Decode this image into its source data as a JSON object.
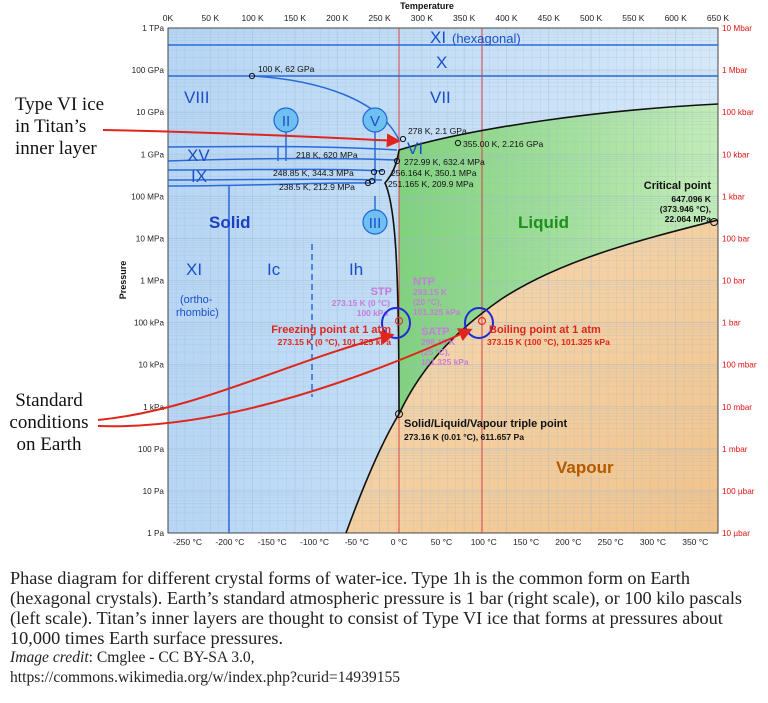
{
  "diagram": {
    "top_axis_title": "Temperature",
    "left_axis_title": "Pressure",
    "kelvin_ticks": [
      "0K",
      "50 K",
      "100 K",
      "150 K",
      "200 K",
      "250 K",
      "300 K",
      "350 K",
      "400 K",
      "450 K",
      "500 K",
      "550 K",
      "600 K",
      "650 K"
    ],
    "celsius_ticks": [
      "-250 °C",
      "-200 °C",
      "-150 °C",
      "-100 °C",
      "-50 °C",
      "0 °C",
      "50 °C",
      "100 °C",
      "150 °C",
      "200 °C",
      "250 °C",
      "300 °C",
      "350 °C"
    ],
    "pa_ticks": [
      "1 TPa",
      "100 GPa",
      "10 GPa",
      "1 GPa",
      "100 MPa",
      "10 MPa",
      "1 MPa",
      "100 kPa",
      "10 kPa",
      "1 kPa",
      "100 Pa",
      "10 Pa",
      "1 Pa"
    ],
    "bar_ticks": [
      "10 Mbar",
      "1 Mbar",
      "100 kbar",
      "10 kbar",
      "1 kbar",
      "100 bar",
      "10 bar",
      "1 bar",
      "100 mbar",
      "10 mbar",
      "1 mbar",
      "100 µbar",
      "10 µbar"
    ],
    "regions": {
      "solid": "Solid",
      "liquid": "Liquid",
      "vapour": "Vapour"
    },
    "phases": {
      "xi_hex": "XI",
      "xi_hex_note": "(hexagonal)",
      "x": "X",
      "viii": "VIII",
      "vii": "VII",
      "ii": "II",
      "v": "V",
      "vi": "VI",
      "xv": "XV",
      "ix": "IX",
      "iii": "III",
      "xi_orth": "XI",
      "xi_orth_note1": "(ortho-",
      "xi_orth_note2": "rhombic)",
      "ic": "Ic",
      "ih": "Ih"
    },
    "points": {
      "p100k": "100 K, 62 GPa",
      "p278k": "278 K, 2.1 GPa",
      "p355k": "355.00 K, 2.216 GPa",
      "p218k": "218 K, 620 MPa",
      "p272k": "272.99 K, 632.4 MPa",
      "p256k": "256.164 K, 350.1 MPa",
      "p248k": "248.85 K, 344.3 MPa",
      "p251k": "251.165 K, 209.9 MPa",
      "p238k": "238.5 K, 212.9 MPa"
    },
    "critical": {
      "title": "Critical point",
      "line1": "647.096 K",
      "line2": "(373.946 °C),",
      "line3": "22.064 MPa"
    },
    "stp": {
      "title": "STP",
      "line1": "273.15 K (0 °C)",
      "line2": "100 kPa"
    },
    "ntp": {
      "title": "NTP",
      "line1": "293.15 K",
      "line2": "(20 °C),",
      "line3": "101.325 kPa"
    },
    "satp": {
      "title": "SATP",
      "line1": "298.15 K",
      "line2": "(25 °C),",
      "line3": "101.325 kPa"
    },
    "freezing": {
      "title": "Freezing point at 1 atm",
      "line1": "273.15 K (0 °C), 101.325 kPa"
    },
    "boiling": {
      "title": "Boiling point at 1 atm",
      "line1": "373.15 K (100 °C), 101.325 kPa"
    },
    "triple": {
      "title": "Solid/Liquid/Vapour triple point",
      "line1": "273.16 K (0.01 °C), 611.657 Pa"
    }
  },
  "annotations": {
    "titan_1": "Type VI ice",
    "titan_2": "in Titan’s",
    "titan_3": "inner layer",
    "std_1": "Standard",
    "std_2": "conditions",
    "std_3": "on Earth"
  },
  "caption": {
    "text": "Phase diagram for different crystal forms of water-ice. Type 1h is the common form on Earth (hexagonal crystals). Earth’s standard atmospheric pressure is 1 bar (right scale), or 100 kilo pascals (left scale). Titan’s inner layers are thought to consist of Type VI ice that forms at pressures about 10,000 times Earth surface pressures.",
    "credit_label": "Image credit",
    "credit_text": ": Cmglee - CC BY-SA 3.0,",
    "url": "https://commons.wikimedia.org/w/index.php?curid=14939155"
  },
  "colors": {
    "solid": "#bcdaf5",
    "liquid": "#a6e4a0",
    "vapour": "#f5d3a8",
    "phase_line": "#000000",
    "ice_line": "#2a6ad8",
    "arrow": "#e0261c",
    "reference": "#cc3333"
  }
}
